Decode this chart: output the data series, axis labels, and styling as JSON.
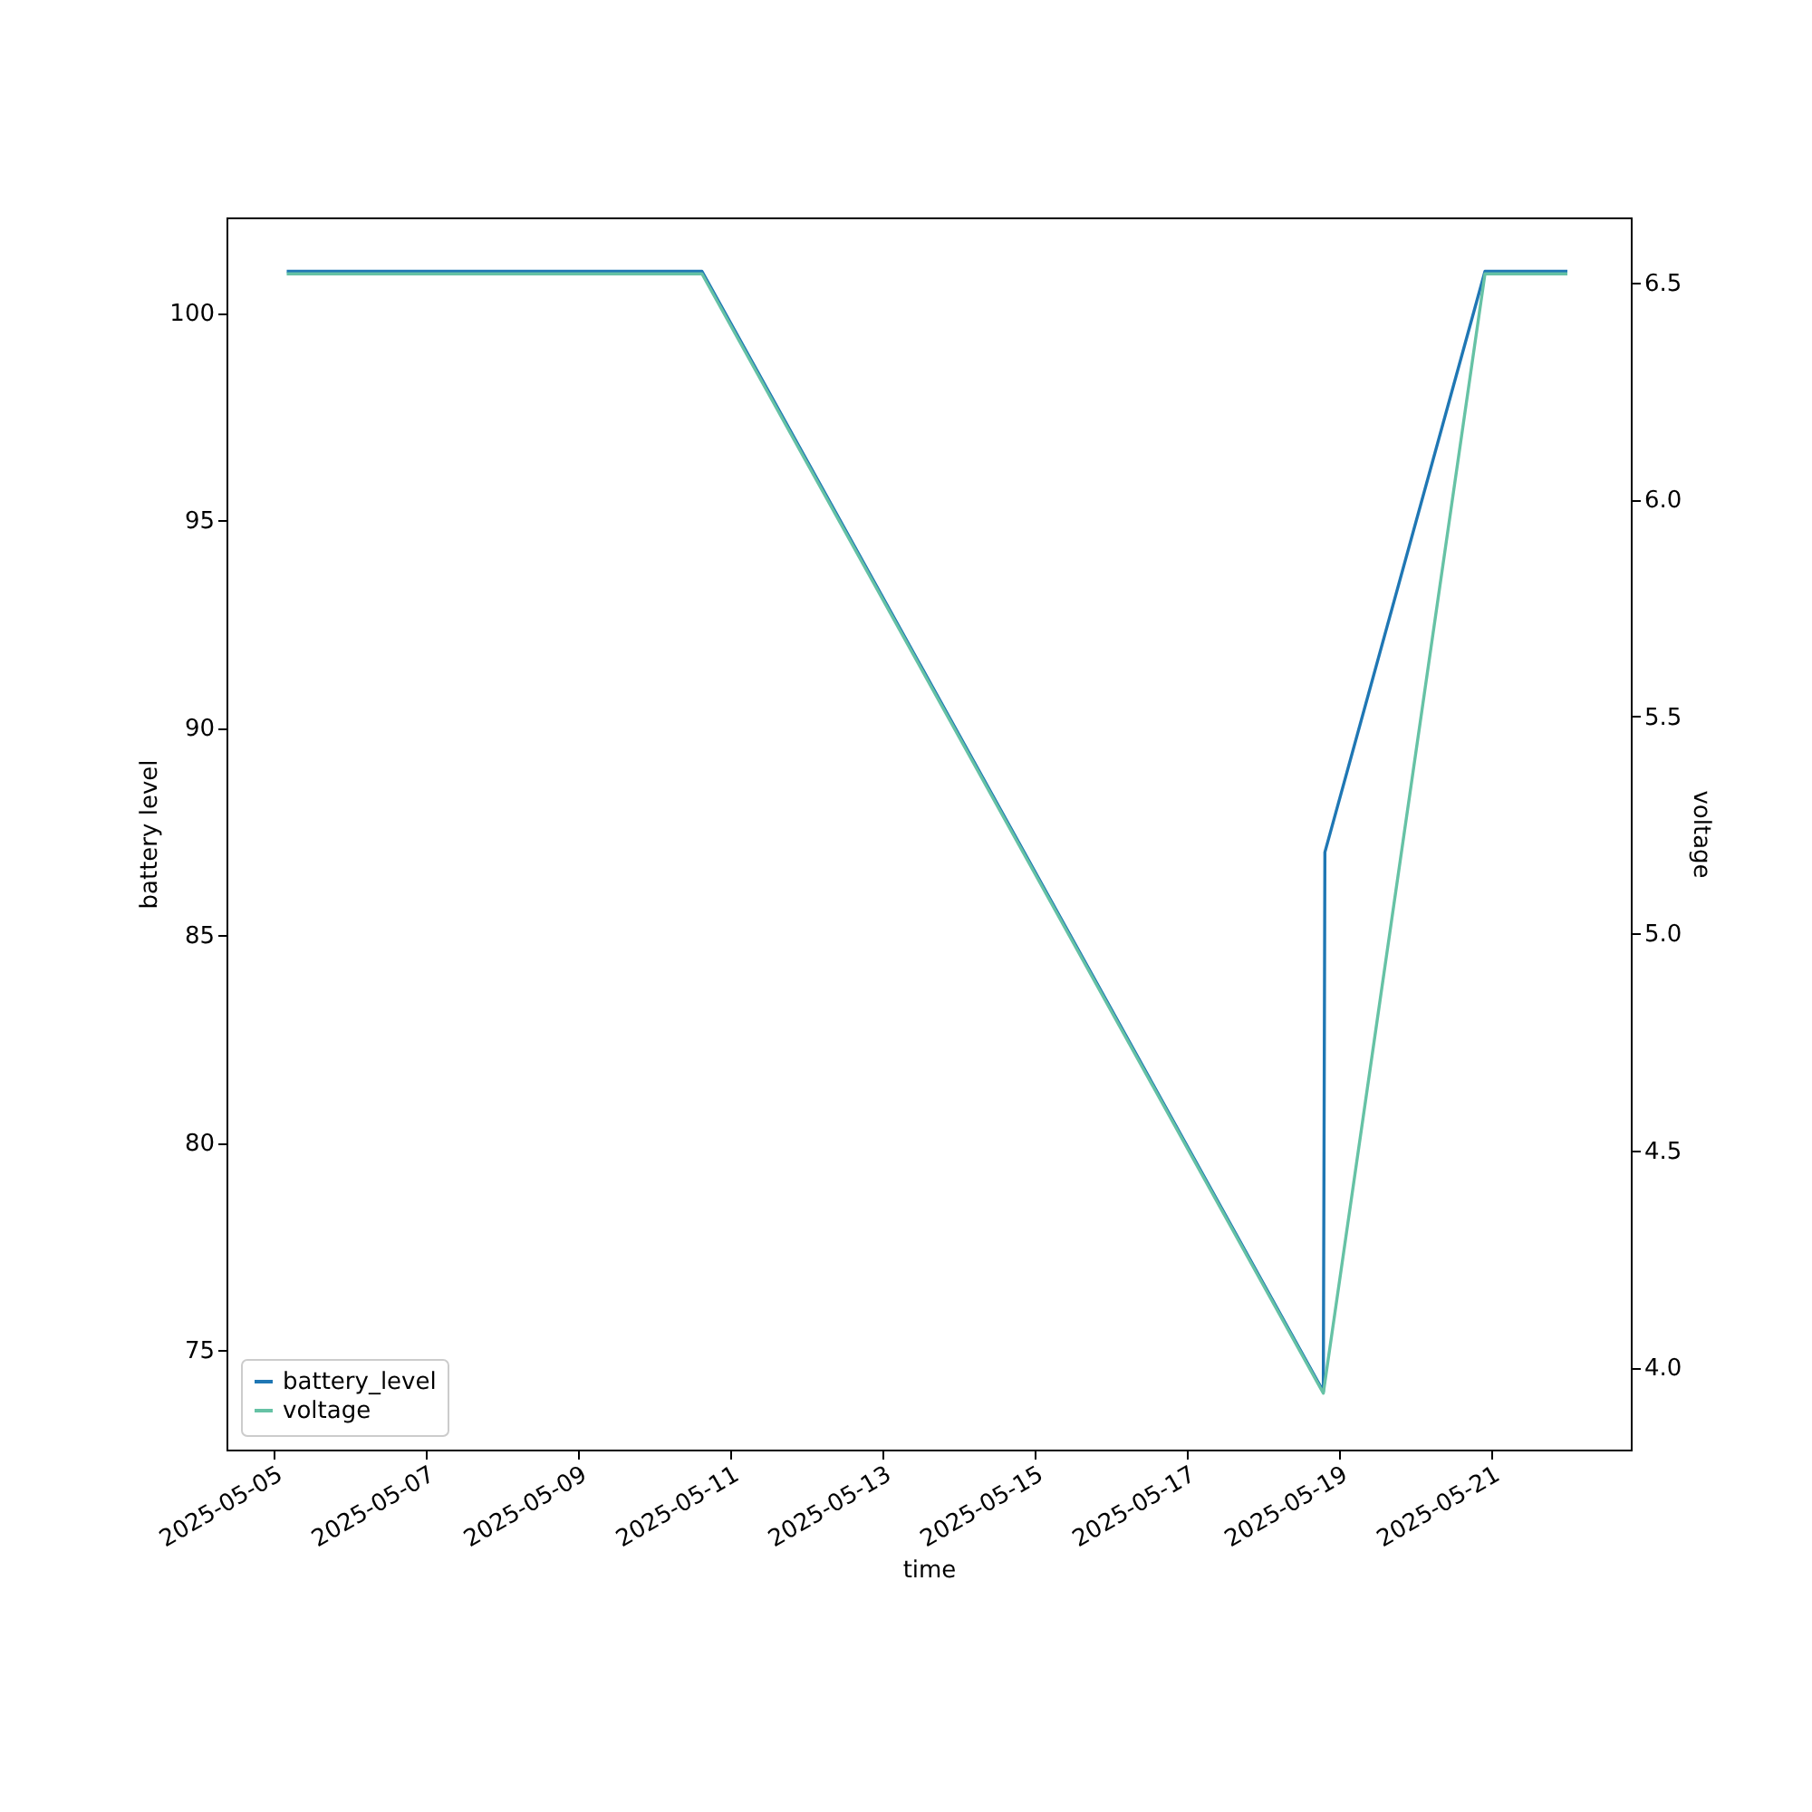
{
  "chart_data": {
    "type": "line",
    "xlabel": "time",
    "ylabel": "battery level",
    "y2label": "voltage",
    "xlim": [
      "2025-05-04T09:00",
      "2025-05-22T20:00"
    ],
    "xticks": [
      {
        "value": "2025-05-05",
        "label": "2025-05-05"
      },
      {
        "value": "2025-05-07",
        "label": "2025-05-07"
      },
      {
        "value": "2025-05-09",
        "label": "2025-05-09"
      },
      {
        "value": "2025-05-11",
        "label": "2025-05-11"
      },
      {
        "value": "2025-05-13",
        "label": "2025-05-13"
      },
      {
        "value": "2025-05-15",
        "label": "2025-05-15"
      },
      {
        "value": "2025-05-17",
        "label": "2025-05-17"
      },
      {
        "value": "2025-05-19",
        "label": "2025-05-19"
      },
      {
        "value": "2025-05-21",
        "label": "2025-05-21"
      }
    ],
    "ylim": [
      72.6,
      102.3
    ],
    "yticks": [
      75,
      80,
      85,
      90,
      95,
      100
    ],
    "y2lim": [
      3.81,
      6.65
    ],
    "y2ticks": [
      {
        "value": 4,
        "label": "4.0"
      },
      {
        "value": 4.5,
        "label": "4.5"
      },
      {
        "value": 5,
        "label": "5.0"
      },
      {
        "value": 5.5,
        "label": "5.5"
      },
      {
        "value": 6,
        "label": "6.0"
      },
      {
        "value": 6.5,
        "label": "6.5"
      }
    ],
    "grid": false,
    "legend": "bottom left",
    "marker": "none",
    "line_style": "solid",
    "series": [
      {
        "name": "battery_level",
        "color": "#1f77b4",
        "x": [
          "2025-05-05T04:00",
          "2025-05-10T15:00",
          "2025-05-18T19:00",
          "2025-05-18T19:30",
          "2025-05-20T22:00",
          "2025-05-22T00:00"
        ],
        "values": [
          101,
          101,
          74,
          87,
          101,
          101
        ]
      },
      {
        "name": "voltage",
        "color": "#66c2a5",
        "axis": "y2",
        "x": [
          "2025-05-05T04:00",
          "2025-05-10T15:00",
          "2025-05-18T19:00",
          "2025-05-20T22:00",
          "2025-05-22T00:00"
        ],
        "values": [
          6.52,
          6.52,
          3.94,
          6.52,
          6.52
        ]
      }
    ]
  }
}
